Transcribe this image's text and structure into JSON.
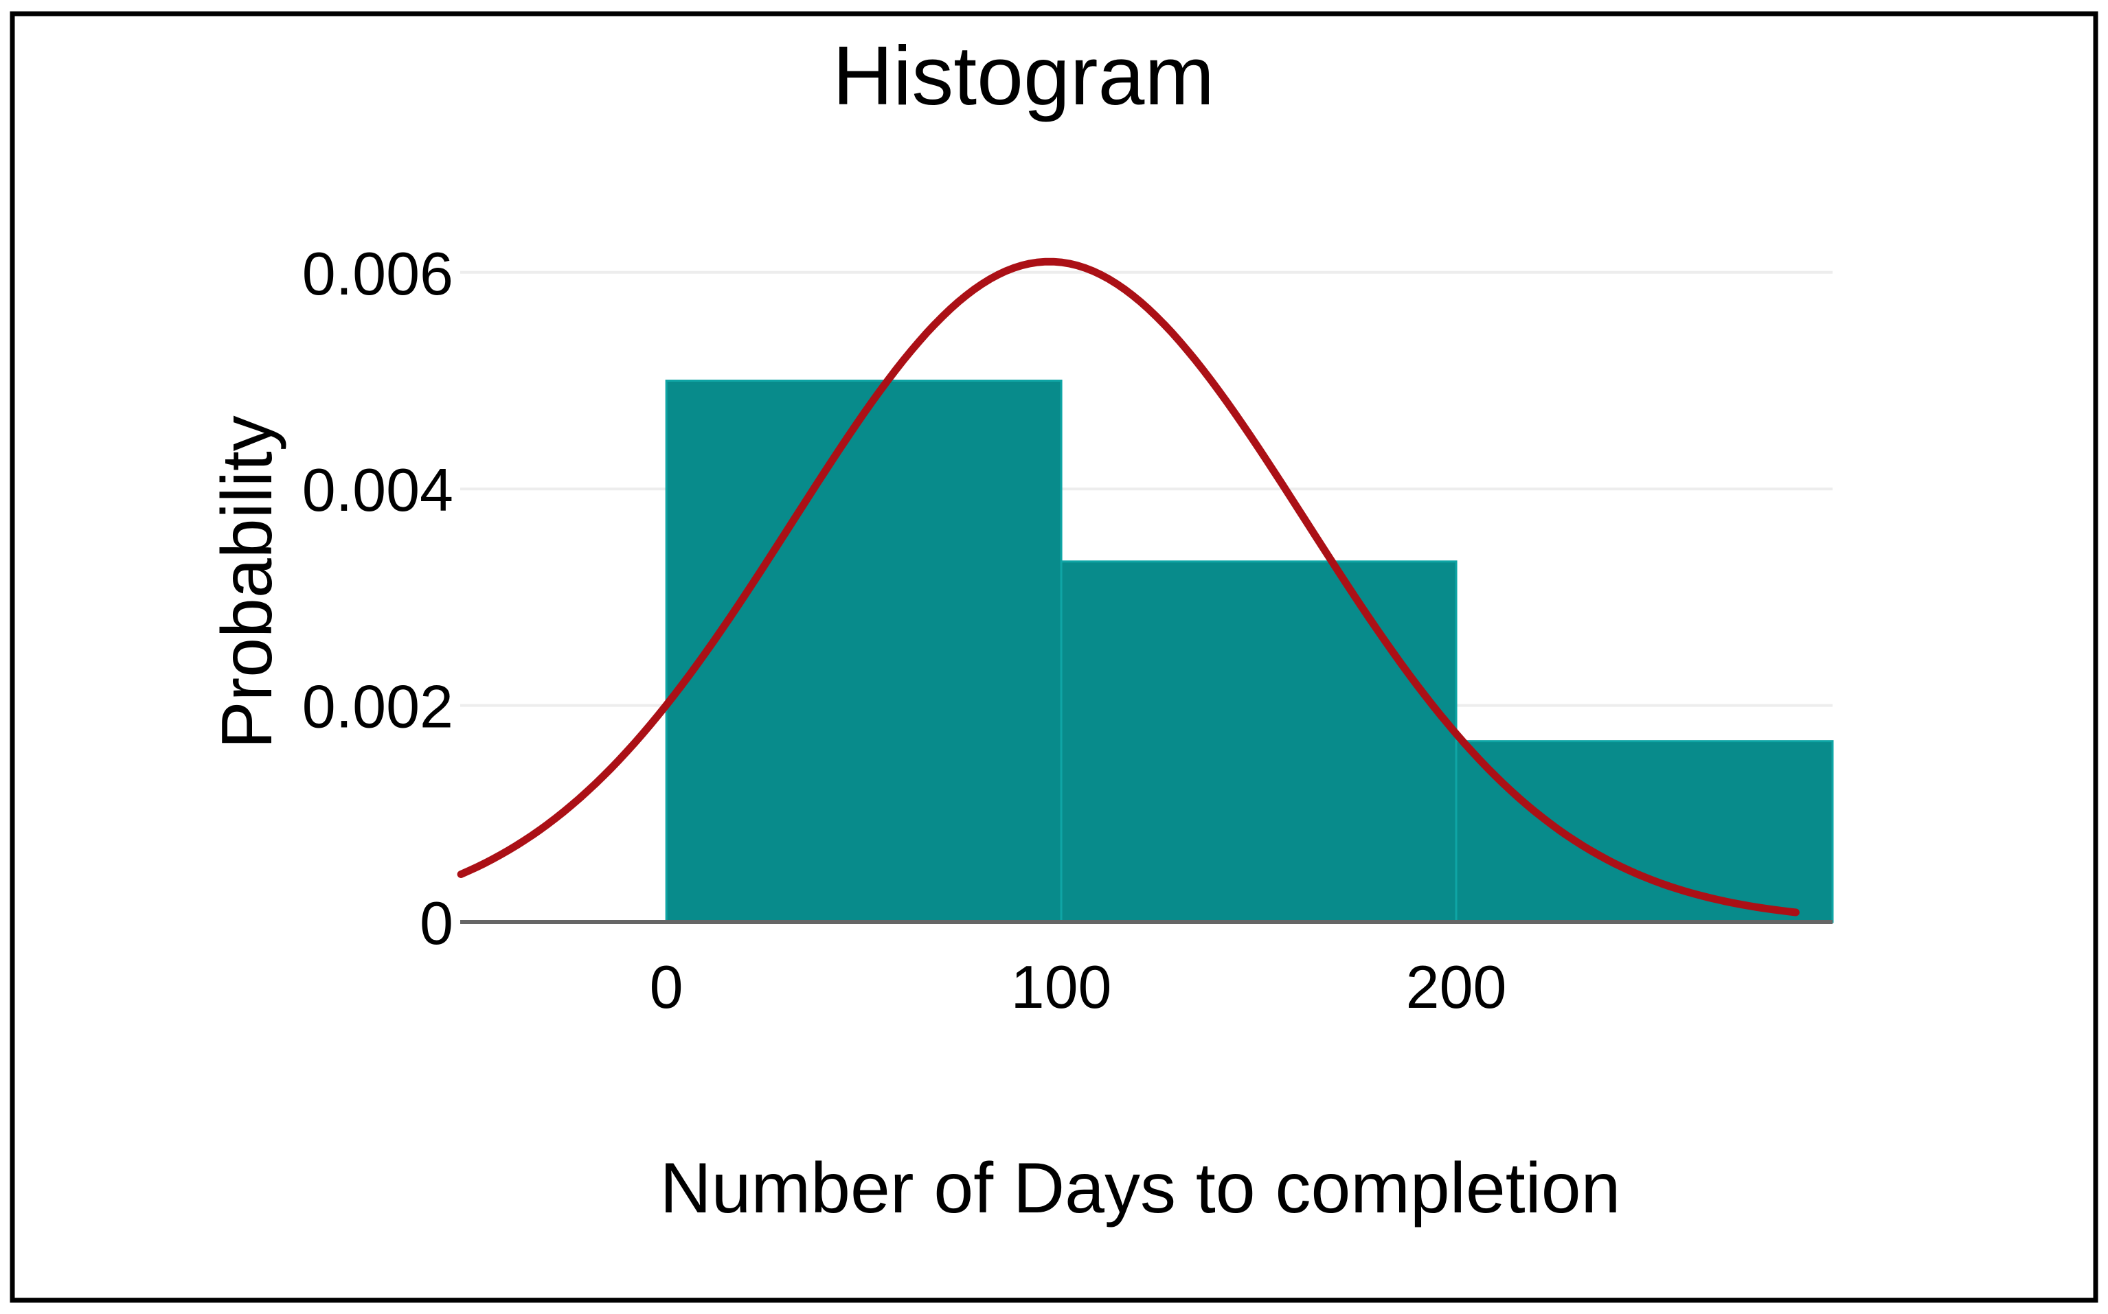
{
  "chart_data": {
    "type": "bar",
    "subtype": "histogram-with-density-curve",
    "title": "Histogram",
    "xlabel": "Number of Days to completion",
    "ylabel": "Probability",
    "xlim": [
      -52.2,
      295.3
    ],
    "ylim": [
      0,
      0.00617
    ],
    "grid": "horizontal-only",
    "legend": "none",
    "bins": [
      {
        "x0": 0,
        "x1": 100,
        "density": 0.005
      },
      {
        "x0": 100,
        "x1": 200,
        "density": 0.00333
      },
      {
        "x0": 200,
        "x1": 300,
        "density": 0.00167
      }
    ],
    "x_ticks": [
      {
        "value": 0,
        "label": "0"
      },
      {
        "value": 100,
        "label": "100"
      },
      {
        "value": 200,
        "label": "200"
      }
    ],
    "y_ticks": [
      {
        "value": 0,
        "label": "0"
      },
      {
        "value": 0.002,
        "label": "0.002"
      },
      {
        "value": 0.004,
        "label": "0.004"
      },
      {
        "value": 0.006,
        "label": "0.006"
      }
    ],
    "curve": {
      "type": "normal-density",
      "mean": 97,
      "sd": 65,
      "peak": 0.0061,
      "x_start": -52,
      "x_end": 286
    },
    "colors": {
      "bar_fill": "#088b8b",
      "bar_stroke": "#0fa5a5",
      "curve": "#ab1016",
      "gridline": "#ededed",
      "axis_line": "#666666",
      "page_border": "#000000",
      "text": "#000000",
      "background": "#ffffff"
    }
  }
}
